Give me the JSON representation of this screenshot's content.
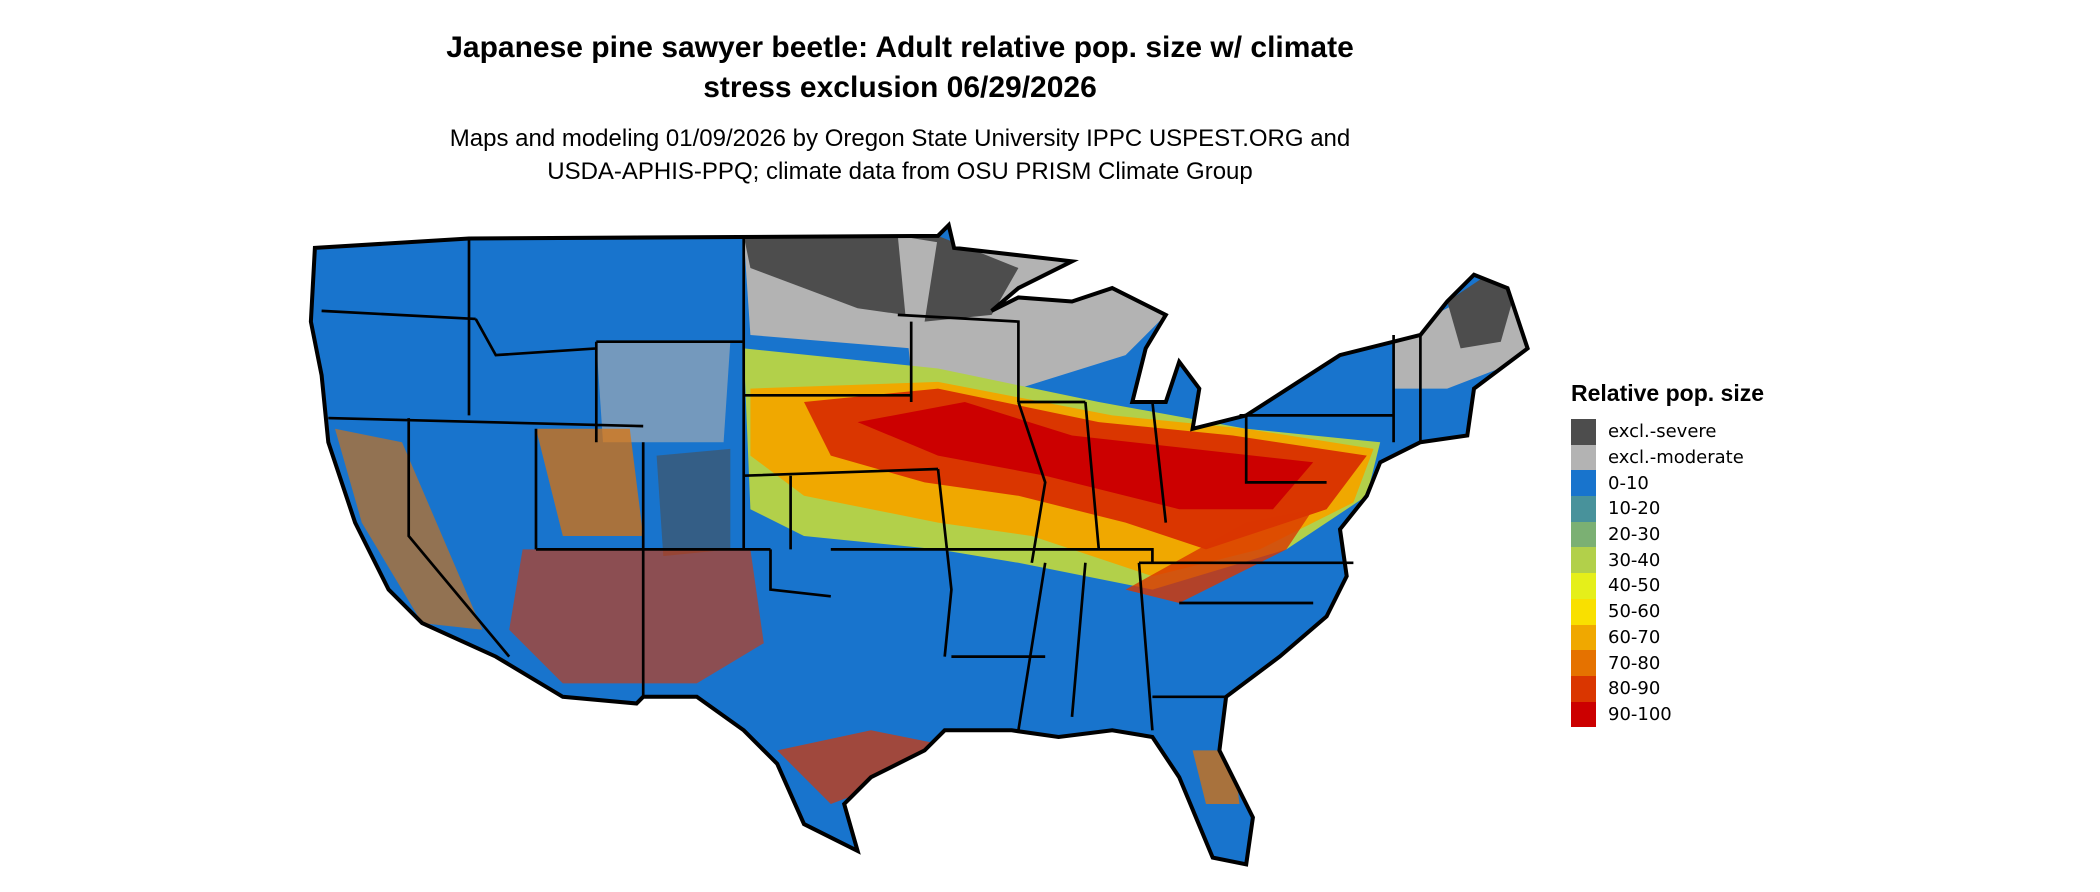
{
  "title_line1": "Japanese pine sawyer beetle: Adult relative pop. size w/ climate",
  "title_line2": "stress exclusion 06/29/2026",
  "subtitle_line1": "Maps and modeling 01/09/2026 by Oregon State University IPPC USPEST.ORG and",
  "subtitle_line2": "USDA-APHIS-PPQ; climate data from OSU PRISM Climate Group",
  "legend": {
    "title": "Relative pop. size",
    "position": "right",
    "items": [
      {
        "label": "excl.-severe",
        "color": "#4d4d4d"
      },
      {
        "label": "excl.-moderate",
        "color": "#b3b3b3"
      },
      {
        "label": "0-10",
        "color": "#1874cd"
      },
      {
        "label": "10-20",
        "color": "#48929b"
      },
      {
        "label": "20-30",
        "color": "#7bb073"
      },
      {
        "label": "30-40",
        "color": "#b2d04a"
      },
      {
        "label": "40-50",
        "color": "#e5ef1a"
      },
      {
        "label": "50-60",
        "color": "#f9e000"
      },
      {
        "label": "60-70",
        "color": "#f0a800"
      },
      {
        "label": "70-80",
        "color": "#e57200"
      },
      {
        "label": "80-90",
        "color": "#da3600"
      },
      {
        "label": "90-100",
        "color": "#cc0000"
      }
    ]
  },
  "map": {
    "region": "Contiguous United States",
    "boundaries": "state borders"
  }
}
